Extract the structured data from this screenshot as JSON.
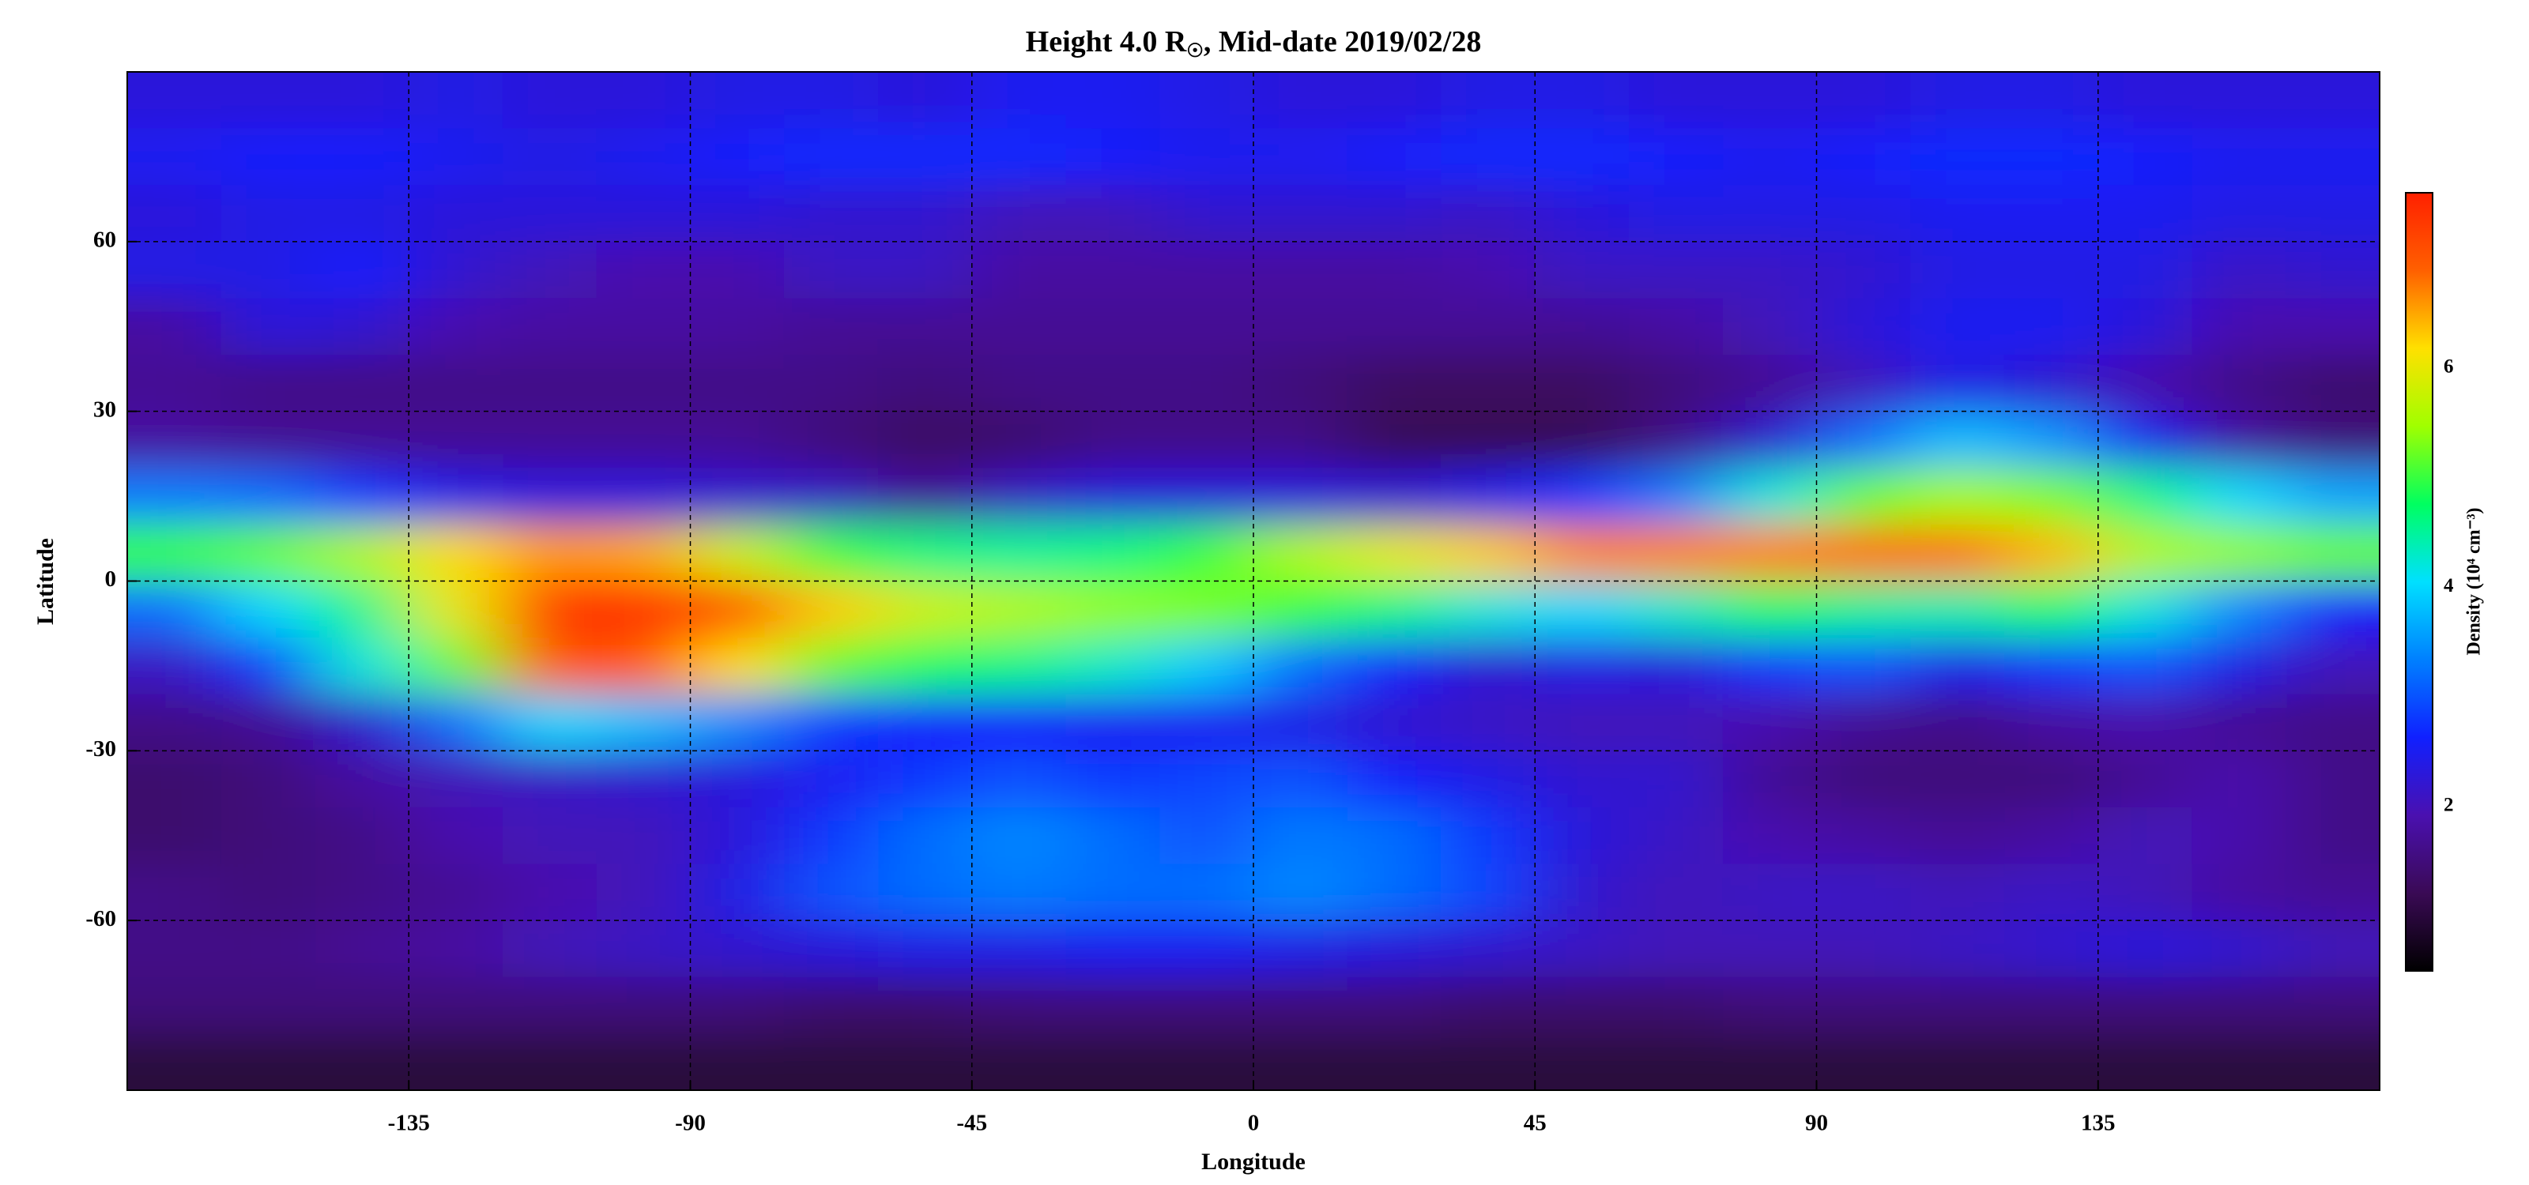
{
  "chart_data": {
    "type": "heatmap",
    "title": "Height 4.0 R",
    "title_subscript": "☉",
    "title_rest": ", Mid-date 2019/02/28",
    "xlabel": "Longitude",
    "ylabel": "Latitude",
    "x": [
      -172.5,
      -157.5,
      -142.5,
      -127.5,
      -112.5,
      -97.5,
      -82.5,
      -67.5,
      -52.5,
      -37.5,
      -22.5,
      -7.5,
      7.5,
      22.5,
      37.5,
      52.5,
      67.5,
      82.5,
      97.5,
      112.5,
      127.5,
      142.5,
      157.5,
      172.5
    ],
    "y": [
      85,
      75,
      65,
      55,
      45,
      35,
      25,
      15,
      5,
      -5,
      -15,
      -25,
      -35,
      -45,
      -55,
      -65,
      -75,
      -85
    ],
    "values": [
      [
        2.3,
        2.3,
        2.3,
        2.4,
        2.3,
        2.3,
        2.4,
        2.4,
        2.3,
        2.5,
        2.5,
        2.4,
        2.3,
        2.3,
        2.4,
        2.4,
        2.3,
        2.3,
        2.3,
        2.4,
        2.4,
        2.3,
        2.3,
        2.3
      ],
      [
        2.5,
        2.6,
        2.6,
        2.5,
        2.4,
        2.5,
        2.6,
        2.7,
        2.7,
        2.7,
        2.6,
        2.5,
        2.5,
        2.6,
        2.7,
        2.7,
        2.6,
        2.5,
        2.6,
        2.7,
        2.7,
        2.6,
        2.5,
        2.5
      ],
      [
        2.3,
        2.4,
        2.4,
        2.3,
        2.3,
        2.3,
        2.3,
        2.2,
        2.2,
        2.0,
        2.0,
        2.2,
        2.2,
        2.2,
        2.1,
        2.3,
        2.4,
        2.4,
        2.4,
        2.5,
        2.5,
        2.5,
        2.4,
        2.4
      ],
      [
        2.4,
        2.4,
        2.6,
        2.2,
        2.0,
        1.9,
        1.9,
        2.1,
        2.1,
        1.8,
        1.8,
        1.8,
        1.8,
        1.8,
        1.9,
        2.1,
        2.1,
        2.1,
        2.2,
        2.4,
        2.4,
        2.4,
        2.1,
        2.2
      ],
      [
        1.8,
        2.3,
        2.2,
        1.9,
        1.8,
        1.8,
        1.8,
        1.7,
        1.7,
        1.7,
        1.7,
        1.7,
        1.7,
        1.7,
        1.7,
        1.7,
        1.8,
        2.0,
        2.3,
        2.5,
        2.5,
        2.3,
        1.9,
        1.9
      ],
      [
        1.7,
        1.6,
        1.6,
        1.6,
        1.6,
        1.6,
        1.6,
        1.6,
        1.5,
        1.6,
        1.6,
        1.6,
        1.5,
        1.3,
        1.3,
        1.3,
        1.5,
        1.7,
        2.0,
        2.4,
        2.2,
        1.9,
        1.6,
        1.4
      ],
      [
        1.8,
        1.7,
        1.7,
        1.7,
        1.7,
        1.7,
        1.7,
        1.5,
        1.3,
        1.4,
        1.6,
        1.6,
        1.6,
        1.2,
        1.2,
        1.2,
        1.6,
        2.2,
        3.2,
        3.8,
        3.5,
        2.5,
        1.8,
        1.5
      ],
      [
        3.3,
        3.2,
        2.8,
        2.4,
        2.3,
        2.3,
        2.2,
        2.1,
        1.7,
        2.1,
        2.3,
        2.3,
        2.3,
        2.2,
        2.4,
        2.8,
        3.3,
        4.2,
        5.2,
        5.5,
        5.3,
        4.6,
        4.0,
        3.6
      ],
      [
        5.0,
        5.2,
        5.6,
        6.2,
        6.6,
        6.5,
        5.8,
        5.0,
        4.6,
        4.5,
        4.6,
        5.0,
        5.6,
        6.0,
        6.3,
        6.7,
        6.7,
        6.7,
        6.8,
        6.8,
        6.4,
        5.6,
        5.4,
        5.2
      ],
      [
        3.2,
        4.0,
        4.6,
        6.0,
        7.4,
        7.4,
        7.0,
        6.3,
        5.8,
        5.6,
        5.4,
        5.3,
        5.0,
        4.6,
        4.2,
        4.0,
        4.3,
        4.8,
        4.5,
        4.4,
        4.8,
        4.2,
        3.4,
        2.6
      ],
      [
        2.1,
        2.8,
        4.2,
        5.2,
        7.0,
        7.0,
        6.2,
        5.2,
        4.8,
        4.6,
        4.3,
        3.9,
        3.2,
        2.6,
        2.2,
        2.4,
        2.3,
        2.8,
        3.0,
        2.4,
        2.8,
        3.0,
        2.4,
        2.0
      ],
      [
        1.6,
        1.7,
        2.2,
        3.2,
        4.0,
        3.8,
        3.4,
        2.8,
        2.6,
        2.6,
        2.5,
        2.5,
        2.4,
        2.2,
        2.1,
        2.0,
        2.0,
        1.9,
        1.7,
        1.6,
        1.8,
        1.9,
        1.7,
        1.6
      ],
      [
        1.4,
        1.5,
        1.8,
        2.0,
        2.1,
        2.2,
        2.3,
        2.5,
        2.8,
        3.0,
        2.8,
        2.9,
        3.0,
        2.6,
        2.4,
        2.2,
        2.2,
        1.7,
        1.5,
        1.5,
        1.5,
        1.7,
        1.9,
        1.6
      ],
      [
        1.4,
        1.5,
        1.6,
        1.9,
        2.0,
        2.0,
        2.3,
        2.8,
        3.2,
        3.4,
        3.2,
        3.0,
        3.3,
        3.2,
        2.8,
        2.3,
        2.1,
        1.9,
        1.8,
        1.7,
        1.8,
        2.0,
        1.9,
        1.6
      ],
      [
        1.6,
        1.5,
        1.6,
        1.7,
        1.9,
        2.0,
        2.4,
        3.0,
        3.2,
        3.3,
        3.2,
        3.2,
        3.4,
        3.2,
        2.9,
        2.2,
        2.0,
        2.1,
        2.1,
        2.0,
        2.1,
        2.0,
        1.8,
        1.7
      ],
      [
        1.6,
        1.6,
        1.7,
        1.8,
        2.0,
        2.1,
        2.2,
        2.3,
        2.4,
        2.4,
        2.5,
        2.5,
        2.4,
        2.3,
        2.2,
        2.1,
        2.0,
        2.0,
        2.0,
        2.1,
        2.2,
        2.3,
        2.2,
        2.0
      ],
      [
        1.5,
        1.5,
        1.5,
        1.5,
        1.5,
        1.5,
        1.5,
        1.4,
        1.4,
        1.5,
        1.5,
        1.5,
        1.5,
        1.5,
        1.4,
        1.4,
        1.4,
        1.5,
        1.5,
        1.5,
        1.5,
        1.5,
        1.5,
        1.5
      ],
      [
        1.0,
        1.0,
        1.0,
        1.0,
        1.0,
        1.0,
        1.0,
        1.0,
        1.0,
        1.0,
        1.0,
        1.0,
        1.0,
        1.0,
        1.0,
        1.0,
        1.0,
        1.0,
        1.0,
        1.0,
        1.0,
        1.0,
        1.0,
        1.0
      ]
    ],
    "xlim": [
      -180,
      180
    ],
    "ylim": [
      -90,
      90
    ],
    "xticks": [
      -135,
      -90,
      -45,
      0,
      45,
      90,
      135
    ],
    "yticks": [
      -60,
      -30,
      0,
      30,
      60
    ],
    "grid": true,
    "colorbar": {
      "label": "Density (10⁴ cm⁻³)",
      "lim": [
        0.5,
        7.6
      ],
      "ticks": [
        2,
        4,
        6
      ],
      "colormap": [
        "#000000",
        "#3a0a55",
        "#4a10b0",
        "#1020ff",
        "#0080ff",
        "#00e0ff",
        "#00ff60",
        "#a0ff00",
        "#ffe000",
        "#ff6000",
        "#ff2000"
      ]
    }
  }
}
